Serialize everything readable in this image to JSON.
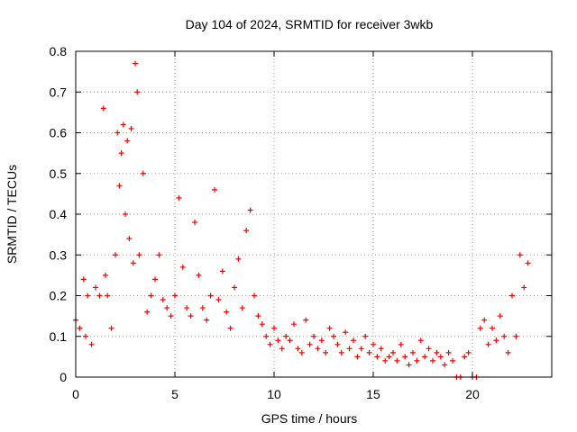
{
  "chart_data": {
    "type": "scatter",
    "title": "Day 104 of 2024, SRMTID for receiver 3wkb",
    "xlabel": "GPS time / hours",
    "ylabel": "SRMTID / TECUs",
    "xlim": [
      0,
      24
    ],
    "ylim": [
      0,
      0.8
    ],
    "xticks": [
      0,
      5,
      10,
      15,
      20
    ],
    "yticks": [
      0,
      0.1,
      0.2,
      0.3,
      0.4,
      0.5,
      0.6,
      0.7,
      0.8
    ],
    "xtick_labels": [
      "0",
      "5",
      "10",
      "15",
      "20"
    ],
    "ytick_labels": [
      "0",
      "0.1",
      "0.2",
      "0.3",
      "0.4",
      "0.5",
      "0.6",
      "0.7",
      "0.8"
    ],
    "grid": true,
    "marker": "plus",
    "color": "#ff0000",
    "series": [
      {
        "name": "SRMTID",
        "x": [
          0.0,
          0.2,
          0.4,
          0.5,
          0.6,
          0.8,
          1.0,
          1.2,
          1.4,
          1.5,
          1.6,
          1.8,
          2.0,
          2.1,
          2.2,
          2.3,
          2.4,
          2.5,
          2.6,
          2.7,
          2.8,
          2.9,
          3.0,
          3.1,
          3.2,
          3.4,
          3.6,
          3.8,
          4.0,
          4.2,
          4.4,
          4.6,
          4.8,
          5.0,
          5.2,
          5.4,
          5.6,
          5.8,
          6.0,
          6.2,
          6.4,
          6.6,
          6.8,
          7.0,
          7.2,
          7.4,
          7.6,
          7.8,
          8.0,
          8.2,
          8.4,
          8.6,
          8.8,
          9.0,
          9.2,
          9.4,
          9.6,
          9.8,
          10.0,
          10.2,
          10.4,
          10.6,
          10.8,
          11.0,
          11.2,
          11.4,
          11.6,
          11.8,
          12.0,
          12.2,
          12.4,
          12.6,
          12.8,
          13.0,
          13.2,
          13.4,
          13.6,
          13.8,
          14.0,
          14.2,
          14.4,
          14.6,
          14.8,
          15.0,
          15.2,
          15.4,
          15.6,
          15.8,
          16.0,
          16.2,
          16.4,
          16.6,
          16.8,
          17.0,
          17.2,
          17.4,
          17.6,
          17.8,
          18.0,
          18.2,
          18.4,
          18.6,
          18.8,
          19.0,
          19.2,
          19.4,
          19.6,
          19.8,
          20.0,
          20.2,
          20.4,
          20.6,
          20.8,
          21.0,
          21.2,
          21.4,
          21.6,
          21.8,
          22.0,
          22.2,
          22.4,
          22.6,
          22.8
        ],
        "y": [
          0.14,
          0.12,
          0.24,
          0.1,
          0.2,
          0.08,
          0.22,
          0.2,
          0.66,
          0.25,
          0.2,
          0.12,
          0.3,
          0.6,
          0.47,
          0.55,
          0.62,
          0.4,
          0.58,
          0.34,
          0.61,
          0.28,
          0.77,
          0.7,
          0.3,
          0.5,
          0.16,
          0.2,
          0.24,
          0.3,
          0.19,
          0.17,
          0.15,
          0.2,
          0.44,
          0.27,
          0.17,
          0.15,
          0.38,
          0.25,
          0.17,
          0.14,
          0.2,
          0.46,
          0.19,
          0.26,
          0.16,
          0.12,
          0.22,
          0.29,
          0.17,
          0.36,
          0.41,
          0.2,
          0.15,
          0.13,
          0.1,
          0.08,
          0.12,
          0.09,
          0.07,
          0.1,
          0.09,
          0.13,
          0.07,
          0.06,
          0.14,
          0.08,
          0.1,
          0.07,
          0.09,
          0.06,
          0.12,
          0.1,
          0.08,
          0.06,
          0.11,
          0.07,
          0.09,
          0.05,
          0.07,
          0.1,
          0.06,
          0.08,
          0.05,
          0.07,
          0.04,
          0.05,
          0.06,
          0.04,
          0.08,
          0.05,
          0.03,
          0.06,
          0.04,
          0.09,
          0.05,
          0.07,
          0.04,
          0.06,
          0.05,
          0.03,
          0.06,
          0.04,
          0.0,
          0.0,
          0.05,
          0.06,
          0.0,
          0.0,
          0.12,
          0.14,
          0.08,
          0.12,
          0.09,
          0.15,
          0.1,
          0.06,
          0.2,
          0.1,
          0.3,
          0.22,
          0.28
        ]
      }
    ]
  }
}
